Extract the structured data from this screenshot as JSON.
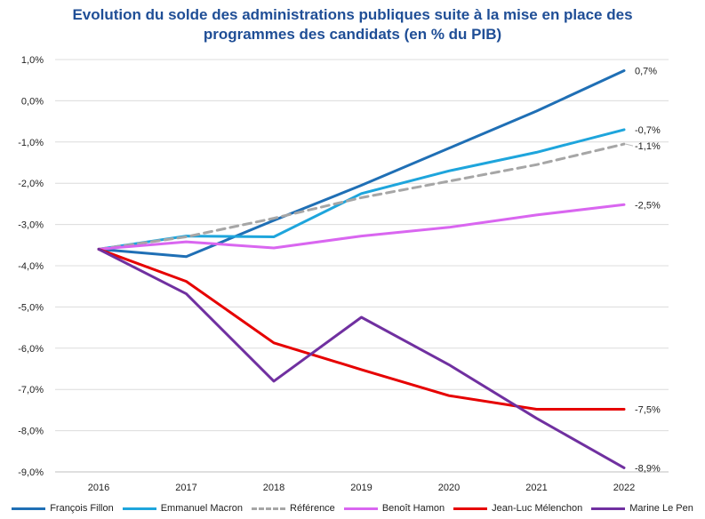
{
  "chart_data": {
    "type": "line",
    "title_lines": [
      "Evolution du solde des administrations publiques suite à la mise en place des",
      "programmes des candidats (en % du PIB)"
    ],
    "categories": [
      "2016",
      "2017",
      "2018",
      "2019",
      "2020",
      "2021",
      "2022"
    ],
    "ylim": [
      -9,
      1
    ],
    "yticks": [
      1,
      0,
      -1,
      -2,
      -3,
      -4,
      -5,
      -6,
      -7,
      -8,
      -9
    ],
    "ytick_labels": [
      "1,0%",
      "0,0%",
      "-1,0%",
      "-2,0%",
      "-3,0%",
      "-4,0%",
      "-5,0%",
      "-6,0%",
      "-7,0%",
      "-8,0%",
      "-9,0%"
    ],
    "grid": true,
    "legend_position": "bottom",
    "series": [
      {
        "name": "François Fillon",
        "color": "#1f6fb5",
        "dashed": false,
        "values": [
          -3.6,
          -3.78,
          -2.9,
          -2.05,
          -1.15,
          -0.25,
          0.73
        ],
        "end_label": "0,7%"
      },
      {
        "name": "Emmanuel Macron",
        "color": "#1ea5dc",
        "dashed": false,
        "values": [
          -3.6,
          -3.28,
          -3.3,
          -2.25,
          -1.7,
          -1.25,
          -0.7
        ],
        "end_label": "-0,7%"
      },
      {
        "name": "Référence",
        "color": "#a6a6a6",
        "dashed": true,
        "values": [
          -3.6,
          -3.3,
          -2.85,
          -2.35,
          -1.95,
          -1.55,
          -1.05
        ],
        "end_label": "-1,1%"
      },
      {
        "name": "Benoît Hamon",
        "color": "#d966f0",
        "dashed": false,
        "values": [
          -3.6,
          -3.42,
          -3.57,
          -3.28,
          -3.07,
          -2.77,
          -2.52
        ],
        "end_label": "-2,5%"
      },
      {
        "name": "Jean-Luc Mélenchon",
        "color": "#e60000",
        "dashed": false,
        "values": [
          -3.6,
          -4.38,
          -5.87,
          -6.52,
          -7.15,
          -7.48,
          -7.48
        ],
        "end_label": "-7,5%"
      },
      {
        "name": "Marine Le Pen",
        "color": "#7030a0",
        "dashed": false,
        "values": [
          -3.6,
          -4.68,
          -6.8,
          -5.25,
          -6.4,
          -7.7,
          -8.9
        ],
        "end_label": "-8,9%"
      }
    ]
  }
}
